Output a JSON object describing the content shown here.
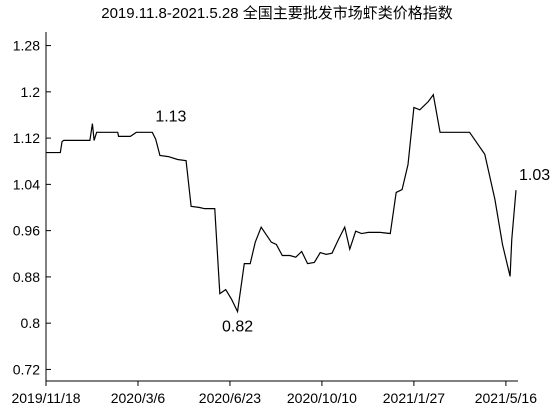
{
  "chart_data": {
    "type": "line",
    "title": "2019.11.8-2021.5.28 全国主要批发市场虾类价格指数",
    "x": [
      "2019/11/18",
      "2019/12/5",
      "2019/12/7",
      "2019/12/9",
      "2020/1/9",
      "2020/1/12",
      "2020/1/14",
      "2020/1/17",
      "2020/2/11",
      "2020/2/12",
      "2020/2/26",
      "2020/3/4",
      "2020/3/23",
      "2020/3/27",
      "2020/4/1",
      "2020/4/11",
      "2020/4/22",
      "2020/5/2",
      "2020/5/8",
      "2020/5/18",
      "2020/5/24",
      "2020/6/5",
      "2020/6/11",
      "2020/6/18",
      "2020/6/25",
      "2020/7/2",
      "2020/7/10",
      "2020/7/17",
      "2020/7/23",
      "2020/7/30",
      "2020/8/5",
      "2020/8/11",
      "2020/8/17",
      "2020/8/24",
      "2020/9/2",
      "2020/9/9",
      "2020/9/16",
      "2020/9/23",
      "2020/10/1",
      "2020/10/8",
      "2020/10/15",
      "2020/10/22",
      "2020/10/29",
      "2020/11/6",
      "2020/11/12",
      "2020/11/19",
      "2020/11/26",
      "2020/12/4",
      "2020/12/18",
      "2020/12/30",
      "2021/1/6",
      "2021/1/13",
      "2021/1/20",
      "2021/1/27",
      "2021/2/3",
      "2021/2/13",
      "2021/2/19",
      "2021/2/27",
      "2021/4/3",
      "2021/4/21",
      "2021/5/3",
      "2021/5/12",
      "2021/5/21",
      "2021/5/23",
      "2021/5/28"
    ],
    "series": [
      {
        "color": "#000000",
        "values": [
          1.095,
          1.095,
          1.114,
          1.116,
          1.116,
          1.145,
          1.116,
          1.13,
          1.13,
          1.123,
          1.123,
          1.13,
          1.13,
          1.118,
          1.09,
          1.088,
          1.083,
          1.081,
          1.002,
          1.0,
          0.998,
          0.998,
          0.851,
          0.858,
          0.841,
          0.82,
          0.903,
          0.903,
          0.94,
          0.966,
          0.953,
          0.94,
          0.936,
          0.917,
          0.917,
          0.914,
          0.924,
          0.903,
          0.905,
          0.922,
          0.919,
          0.921,
          0.943,
          0.966,
          0.928,
          0.959,
          0.955,
          0.957,
          0.957,
          0.955,
          1.026,
          1.031,
          1.074,
          1.173,
          1.169,
          1.183,
          1.195,
          1.13,
          1.13,
          1.092,
          1.014,
          0.936,
          0.881,
          0.945,
          1.03
        ],
        "value_labels": [
          null,
          null,
          null,
          null,
          null,
          null,
          null,
          null,
          null,
          null,
          null,
          null,
          "1.13",
          null,
          null,
          null,
          null,
          null,
          null,
          null,
          null,
          null,
          null,
          null,
          null,
          "0.82",
          null,
          null,
          null,
          null,
          null,
          null,
          null,
          null,
          null,
          null,
          null,
          null,
          null,
          null,
          null,
          null,
          null,
          null,
          null,
          null,
          null,
          null,
          null,
          null,
          null,
          null,
          null,
          null,
          null,
          null,
          null,
          null,
          null,
          null,
          null,
          null,
          null,
          null,
          "1.03"
        ]
      }
    ],
    "xlim": [
      "2019/11/18",
      "2021/5/28"
    ],
    "xticks": [
      "2019/11/18",
      "2020/3/6",
      "2020/6/23",
      "2020/10/10",
      "2021/1/27",
      "2021/5/16"
    ],
    "ylim": [
      0.7,
      1.3
    ],
    "yticks": [
      1.28,
      1.2,
      1.12,
      1.04,
      0.96,
      0.88,
      0.8,
      0.72
    ]
  }
}
